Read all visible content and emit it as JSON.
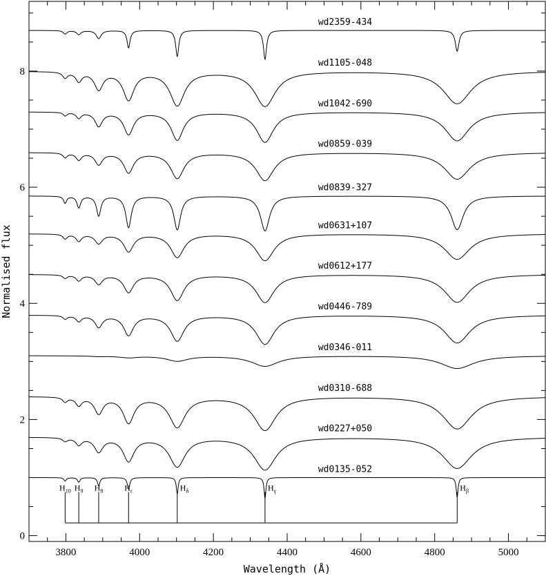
{
  "chart_data": {
    "type": "line",
    "xlabel": "Wavelength  (Å)",
    "ylabel": "Normalised flux",
    "xlim": [
      3700,
      5100
    ],
    "ylim": [
      -0.1,
      9.2
    ],
    "x_ticks": [
      3800,
      4000,
      4200,
      4400,
      4600,
      4800,
      5000
    ],
    "x_tick_labels": [
      "3800",
      "4000",
      "4200",
      "4400",
      "4600",
      "4800",
      "5000"
    ],
    "y_ticks": [
      0,
      2,
      4,
      6,
      8
    ],
    "y_tick_labels": [
      "0",
      "2",
      "4",
      "6",
      "8"
    ],
    "grid": false,
    "legend": "none",
    "line_wavelengths": [
      3798,
      3835,
      3889,
      3970,
      4102,
      4340,
      4861
    ],
    "series": [
      {
        "name": "wd2359-434",
        "offset": 8.7,
        "depths": [
          0.06,
          0.07,
          0.14,
          0.3,
          0.45,
          0.5,
          0.36
        ],
        "widths": [
          6,
          7,
          8,
          5,
          5,
          5,
          6
        ]
      },
      {
        "name": "wd1105-048",
        "offset": 8.0,
        "depths": [
          0.1,
          0.16,
          0.3,
          0.48,
          0.58,
          0.6,
          0.56
        ],
        "widths": [
          8,
          10,
          14,
          18,
          24,
          34,
          46
        ]
      },
      {
        "name": "wd1042-690",
        "offset": 7.3,
        "depths": [
          0.06,
          0.1,
          0.24,
          0.38,
          0.48,
          0.52,
          0.5
        ],
        "widths": [
          6,
          8,
          12,
          16,
          20,
          28,
          40
        ]
      },
      {
        "name": "wd0859-039",
        "offset": 6.6,
        "depths": [
          0.08,
          0.12,
          0.2,
          0.34,
          0.44,
          0.48,
          0.46
        ],
        "widths": [
          7,
          9,
          12,
          16,
          22,
          30,
          42
        ]
      },
      {
        "name": "wd0839-327",
        "offset": 5.85,
        "depths": [
          0.12,
          0.2,
          0.34,
          0.54,
          0.58,
          0.6,
          0.58
        ],
        "widths": [
          5,
          6,
          7,
          9,
          11,
          15,
          20
        ]
      },
      {
        "name": "wd0631+107",
        "offset": 5.2,
        "depths": [
          0.08,
          0.12,
          0.16,
          0.3,
          0.4,
          0.46,
          0.44
        ],
        "widths": [
          7,
          9,
          12,
          16,
          22,
          30,
          42
        ]
      },
      {
        "name": "wd0612+177",
        "offset": 4.5,
        "depths": [
          0.06,
          0.1,
          0.16,
          0.3,
          0.44,
          0.48,
          0.48
        ],
        "widths": [
          7,
          9,
          12,
          16,
          22,
          30,
          42
        ]
      },
      {
        "name": "wd0446-789",
        "offset": 3.8,
        "depths": [
          0.06,
          0.1,
          0.2,
          0.34,
          0.44,
          0.5,
          0.48
        ],
        "widths": [
          7,
          9,
          12,
          16,
          22,
          30,
          42
        ]
      },
      {
        "name": "wd0346-011",
        "offset": 3.1,
        "depths": [
          0.0,
          0.0,
          0.01,
          0.03,
          0.09,
          0.18,
          0.22
        ],
        "widths": [
          15,
          20,
          25,
          30,
          35,
          45,
          55
        ]
      },
      {
        "name": "wd0310-688",
        "offset": 2.4,
        "depths": [
          0.08,
          0.14,
          0.28,
          0.44,
          0.52,
          0.58,
          0.56
        ],
        "widths": [
          8,
          10,
          14,
          18,
          26,
          36,
          48
        ]
      },
      {
        "name": "wd0227+050",
        "offset": 1.7,
        "depths": [
          0.06,
          0.12,
          0.24,
          0.4,
          0.5,
          0.56,
          0.54
        ],
        "widths": [
          8,
          10,
          14,
          18,
          26,
          36,
          48
        ]
      },
      {
        "name": "wd0135-052",
        "offset": 1.0,
        "depths": [
          0.06,
          0.08,
          0.14,
          0.2,
          0.28,
          0.36,
          0.34
        ],
        "widths": [
          4,
          4,
          4,
          4,
          3,
          3,
          3
        ]
      }
    ],
    "annotations": {
      "balmer_markers": [
        {
          "wavelength": 3798,
          "main": "H",
          "sub": "10"
        },
        {
          "wavelength": 3835,
          "main": "H",
          "sub": "9"
        },
        {
          "wavelength": 3889,
          "main": "H",
          "sub": "8"
        },
        {
          "wavelength": 3970,
          "main": "H",
          "sub": "ε"
        },
        {
          "wavelength": 4102,
          "main": "H",
          "sub": "δ"
        },
        {
          "wavelength": 4340,
          "main": "H",
          "sub": "γ"
        },
        {
          "wavelength": 4861,
          "main": "H",
          "sub": "β"
        }
      ],
      "marker_top": 0.75,
      "marker_base": 0.22
    }
  }
}
